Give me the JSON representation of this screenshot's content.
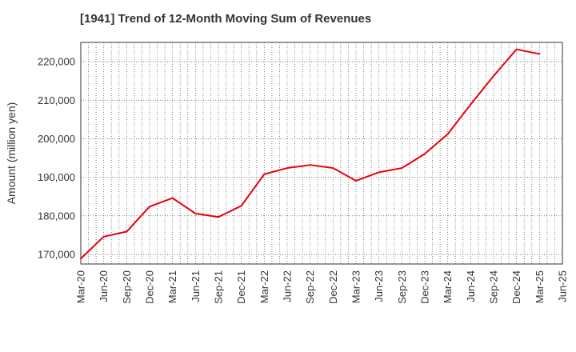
{
  "chart_data": {
    "type": "line",
    "title": "[1941]  Trend of 12-Month Moving Sum of Revenues",
    "xlabel": "",
    "ylabel": "Amount (million yen)",
    "x_tick_labels": [
      "Mar-20",
      "Jun-20",
      "Sep-20",
      "Dec-20",
      "Mar-21",
      "Jun-21",
      "Sep-21",
      "Dec-21",
      "Mar-22",
      "Jun-22",
      "Sep-22",
      "Dec-22",
      "Mar-23",
      "Jun-23",
      "Sep-23",
      "Dec-23",
      "Mar-24",
      "Jun-24",
      "Sep-24",
      "Dec-24",
      "Mar-25",
      "Jun-25"
    ],
    "y_ticks": [
      170000,
      180000,
      190000,
      200000,
      210000,
      220000
    ],
    "y_tick_labels": [
      "170,000",
      "180,000",
      "190,000",
      "200,000",
      "210,000",
      "220,000"
    ],
    "ylim": [
      167500,
      225000
    ],
    "grid": true,
    "series": [
      {
        "color": "#e8000b",
        "x": [
          "Mar-20",
          "Jun-20",
          "Sep-20",
          "Dec-20",
          "Mar-21",
          "Jun-21",
          "Sep-21",
          "Dec-21",
          "Mar-22",
          "Jun-22",
          "Sep-22",
          "Dec-22",
          "Mar-23",
          "Jun-23",
          "Sep-23",
          "Dec-23",
          "Mar-24",
          "Jun-24",
          "Sep-24",
          "Dec-24",
          "Mar-25"
        ],
        "values": [
          168900,
          174600,
          175900,
          182400,
          184600,
          180600,
          179700,
          182600,
          190800,
          192400,
          193200,
          192400,
          189100,
          191300,
          192400,
          196100,
          201200,
          208900,
          216300,
          223200,
          222000
        ]
      }
    ]
  }
}
